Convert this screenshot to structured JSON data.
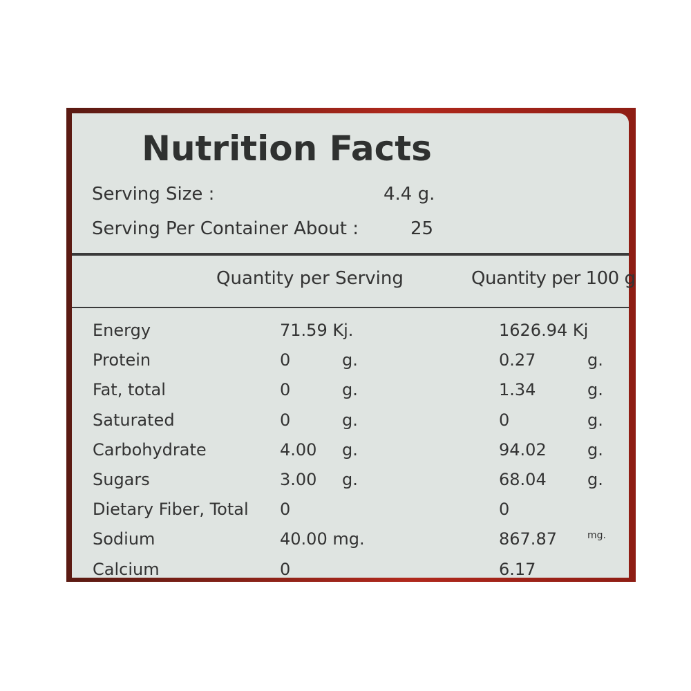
{
  "title": "Nutrition Facts",
  "serving": [
    {
      "label": "Serving Size :",
      "value": "4.4 g."
    },
    {
      "label": "Serving Per Container About :",
      "value": "25"
    }
  ],
  "table": {
    "headers": [
      "Quantity per Serving",
      "Quantity per 100 g"
    ],
    "rows": [
      {
        "name": "Energy",
        "serving": "71.59 Kj.",
        "per100": "1626.94 Kj"
      },
      {
        "name": "Protein",
        "serving": "0",
        "serving_unit": "g.",
        "per100": "0.27",
        "per100_unit": "g."
      },
      {
        "name": "Fat, total",
        "serving": "0",
        "serving_unit": "g.",
        "per100": "1.34",
        "per100_unit": "g."
      },
      {
        "name": "Saturated",
        "serving": "0",
        "serving_unit": "g.",
        "per100": "0",
        "per100_unit": "g."
      },
      {
        "name": "Carbohydrate",
        "serving": "4.00",
        "serving_unit": "g.",
        "per100": "94.02",
        "per100_unit": "g."
      },
      {
        "name": "Sugars",
        "serving": "3.00",
        "serving_unit": "g.",
        "per100": "68.04",
        "per100_unit": "g."
      },
      {
        "name": "Dietary Fiber, Total",
        "serving": "0",
        "per100": "0"
      },
      {
        "name": "Sodium",
        "serving": "40.00 mg.",
        "per100": "867.87",
        "per100_unit": "mg."
      },
      {
        "name": "Calcium",
        "serving": "0",
        "per100": "6.17"
      }
    ]
  }
}
